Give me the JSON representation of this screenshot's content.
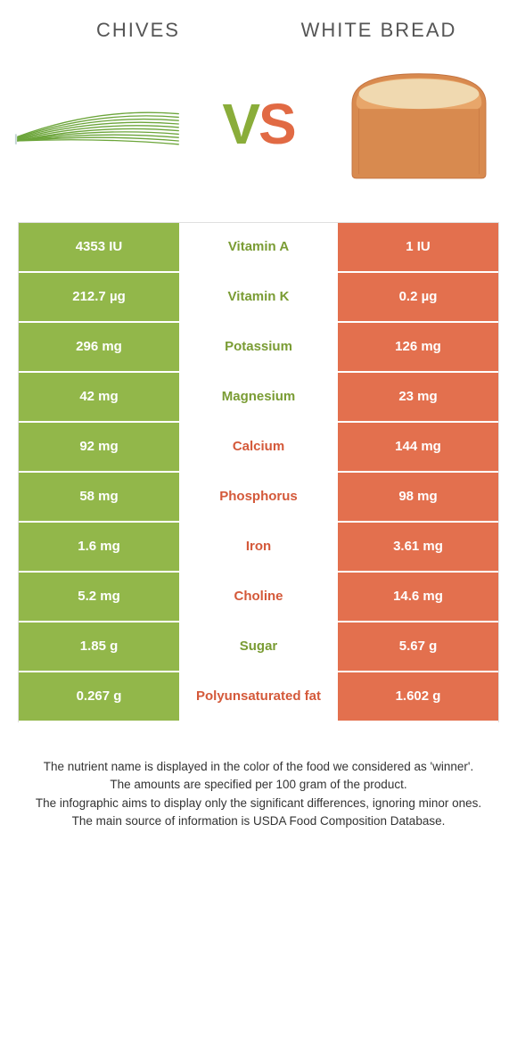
{
  "header": {
    "left_title": "Chives",
    "right_title": "White Bread",
    "vs_v": "V",
    "vs_s": "S"
  },
  "colors": {
    "green": "#92b74a",
    "orange": "#e3704e",
    "text_green": "#7a9c34",
    "text_orange": "#d4593a",
    "bread_crust": "#d88a4f",
    "bread_top": "#f0d9b0",
    "chive": "#6ca53a"
  },
  "rows": [
    {
      "left": "4353 IU",
      "mid": "Vitamin A",
      "right": "1 IU",
      "winner": "left"
    },
    {
      "left": "212.7 µg",
      "mid": "Vitamin K",
      "right": "0.2 µg",
      "winner": "left"
    },
    {
      "left": "296 mg",
      "mid": "Potassium",
      "right": "126 mg",
      "winner": "left"
    },
    {
      "left": "42 mg",
      "mid": "Magnesium",
      "right": "23 mg",
      "winner": "left"
    },
    {
      "left": "92 mg",
      "mid": "Calcium",
      "right": "144 mg",
      "winner": "right"
    },
    {
      "left": "58 mg",
      "mid": "Phosphorus",
      "right": "98 mg",
      "winner": "right"
    },
    {
      "left": "1.6 mg",
      "mid": "Iron",
      "right": "3.61 mg",
      "winner": "right"
    },
    {
      "left": "5.2 mg",
      "mid": "Choline",
      "right": "14.6 mg",
      "winner": "right"
    },
    {
      "left": "1.85 g",
      "mid": "Sugar",
      "right": "5.67 g",
      "winner": "left"
    },
    {
      "left": "0.267 g",
      "mid": "Polyunsaturated fat",
      "right": "1.602 g",
      "winner": "right"
    }
  ],
  "notes": [
    "The nutrient name is displayed in the color of the food we considered as 'winner'.",
    "The amounts are specified per 100 gram of the product.",
    "The infographic aims to display only the significant differences, ignoring minor ones.",
    "The main source of information is USDA Food Composition Database."
  ]
}
